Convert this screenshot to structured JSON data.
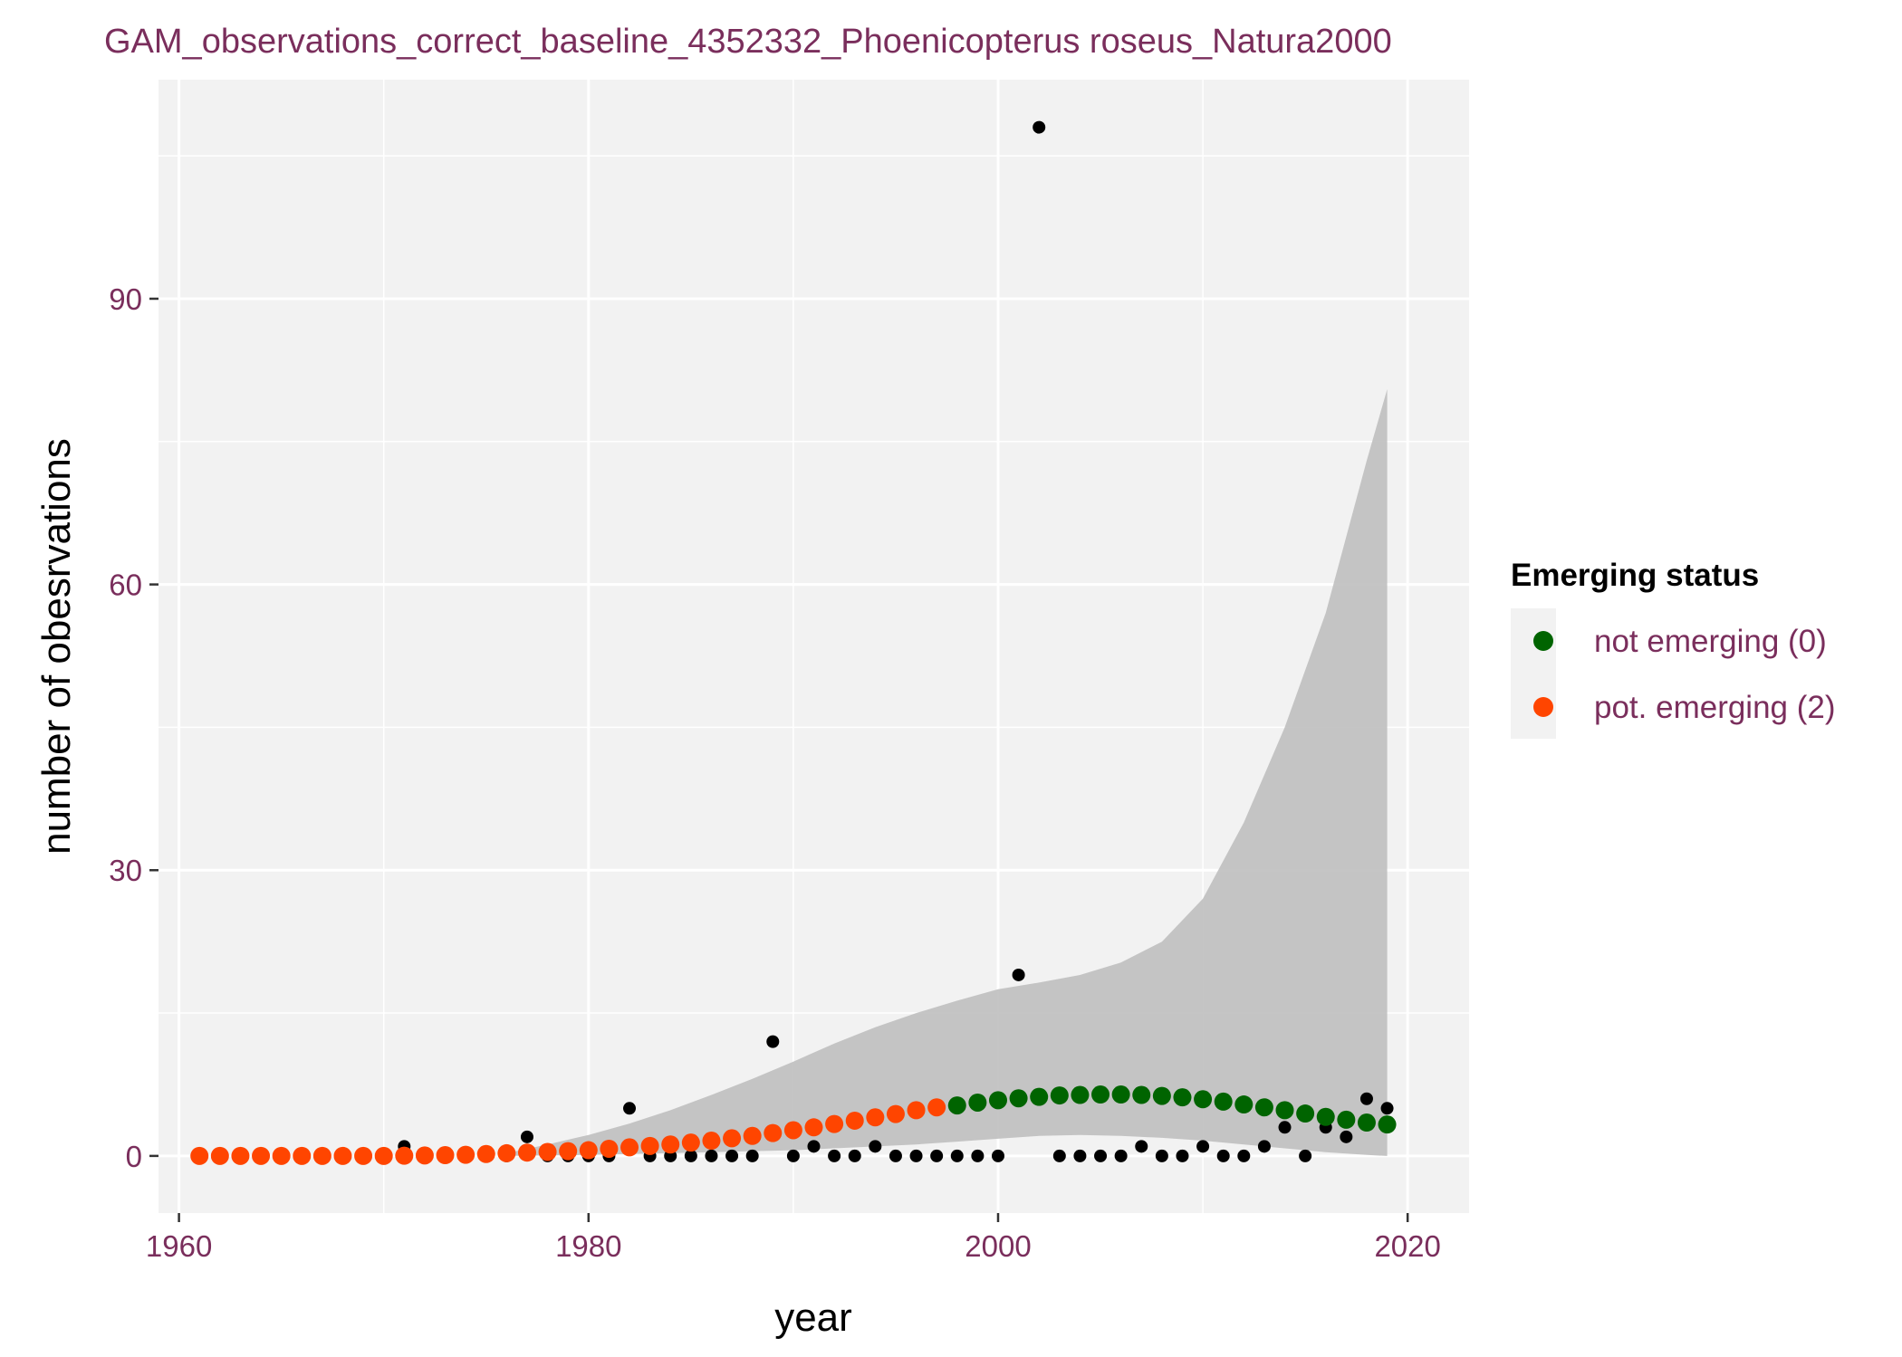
{
  "chart_data": {
    "type": "scatter",
    "title": "GAM_observations_correct_baseline_4352332_Phoenicopterus roseus_Natura2000",
    "xlabel": "year",
    "ylabel": "number of obesrvations",
    "xlim": [
      1959,
      2023
    ],
    "ylim": [
      -6,
      113
    ],
    "x_ticks": [
      1960,
      1980,
      2000,
      2020
    ],
    "y_ticks": [
      0,
      30,
      60,
      90
    ],
    "grid": true,
    "legend": {
      "title": "Emerging status",
      "placement": "right",
      "entries": [
        {
          "label": "not emerging (0)",
          "color": "#006400"
        },
        {
          "label": "pot. emerging (2)",
          "color": "#ff4500"
        }
      ]
    },
    "observations": {
      "color": "#000000",
      "x": [
        1961,
        1962,
        1963,
        1964,
        1965,
        1966,
        1967,
        1968,
        1969,
        1970,
        1971,
        1972,
        1973,
        1974,
        1975,
        1976,
        1977,
        1978,
        1979,
        1980,
        1981,
        1982,
        1983,
        1984,
        1985,
        1986,
        1987,
        1988,
        1989,
        1990,
        1991,
        1992,
        1993,
        1994,
        1995,
        1996,
        1997,
        1998,
        1999,
        2000,
        2001,
        2002,
        2003,
        2004,
        2005,
        2006,
        2007,
        2008,
        2009,
        2010,
        2011,
        2012,
        2013,
        2014,
        2015,
        2016,
        2017,
        2018,
        2019
      ],
      "y": [
        0,
        0,
        0,
        0,
        0,
        0,
        0,
        0,
        0,
        0,
        1,
        0,
        0,
        0,
        0,
        0,
        2,
        0,
        0,
        0,
        0,
        5,
        0,
        0,
        0,
        0,
        0,
        0,
        12,
        0,
        1,
        0,
        0,
        1,
        0,
        0,
        0,
        0,
        0,
        0,
        19,
        108,
        0,
        0,
        0,
        0,
        1,
        0,
        0,
        1,
        0,
        0,
        1,
        3,
        0,
        3,
        2,
        6,
        5
      ]
    },
    "fitted": {
      "x": [
        1961,
        1962,
        1963,
        1964,
        1965,
        1966,
        1967,
        1968,
        1969,
        1970,
        1971,
        1972,
        1973,
        1974,
        1975,
        1976,
        1977,
        1978,
        1979,
        1980,
        1981,
        1982,
        1983,
        1984,
        1985,
        1986,
        1987,
        1988,
        1989,
        1990,
        1991,
        1992,
        1993,
        1994,
        1995,
        1996,
        1997,
        1998,
        1999,
        2000,
        2001,
        2002,
        2003,
        2004,
        2005,
        2006,
        2007,
        2008,
        2009,
        2010,
        2011,
        2012,
        2013,
        2014,
        2015,
        2016,
        2017,
        2018,
        2019
      ],
      "y": [
        0,
        0,
        0,
        0,
        0,
        0,
        0,
        0,
        0,
        0,
        0.02,
        0.05,
        0.08,
        0.12,
        0.2,
        0.28,
        0.35,
        0.42,
        0.5,
        0.6,
        0.75,
        0.9,
        1.05,
        1.2,
        1.4,
        1.6,
        1.85,
        2.1,
        2.4,
        2.7,
        3.0,
        3.35,
        3.7,
        4.05,
        4.4,
        4.8,
        5.1,
        5.3,
        5.6,
        5.85,
        6.05,
        6.2,
        6.35,
        6.4,
        6.45,
        6.45,
        6.4,
        6.3,
        6.15,
        5.95,
        5.7,
        5.4,
        5.1,
        4.8,
        4.45,
        4.1,
        3.8,
        3.5,
        3.3
      ],
      "status": [
        2,
        2,
        2,
        2,
        2,
        2,
        2,
        2,
        2,
        2,
        2,
        2,
        2,
        2,
        2,
        2,
        2,
        2,
        2,
        2,
        2,
        2,
        2,
        2,
        2,
        2,
        2,
        2,
        2,
        2,
        2,
        2,
        2,
        2,
        2,
        2,
        2,
        0,
        0,
        0,
        0,
        0,
        0,
        0,
        0,
        0,
        0,
        0,
        0,
        0,
        0,
        0,
        0,
        0,
        0,
        0,
        0,
        0,
        0
      ],
      "status_colors": {
        "0": "#006400",
        "2": "#ff4500"
      }
    },
    "confidence_band": {
      "color": "#bfbfbf",
      "x": [
        1976,
        1978,
        1980,
        1982,
        1984,
        1986,
        1988,
        1990,
        1992,
        1994,
        1996,
        1998,
        2000,
        2002,
        2004,
        2006,
        2008,
        2010,
        2012,
        2014,
        2016,
        2018,
        2019
      ],
      "upper": [
        0.3,
        1.2,
        2.2,
        3.4,
        4.8,
        6.4,
        8.1,
        9.9,
        11.8,
        13.5,
        15.0,
        16.3,
        17.5,
        18.2,
        19.0,
        20.3,
        22.5,
        27.0,
        35.0,
        45.0,
        57.0,
        73.0,
        80.5
      ],
      "lower": [
        0,
        0.05,
        0.1,
        0.2,
        0.3,
        0.4,
        0.5,
        0.6,
        0.8,
        1.0,
        1.2,
        1.5,
        1.8,
        2.1,
        2.2,
        2.1,
        1.9,
        1.6,
        1.2,
        0.8,
        0.4,
        0.1,
        0
      ]
    }
  }
}
